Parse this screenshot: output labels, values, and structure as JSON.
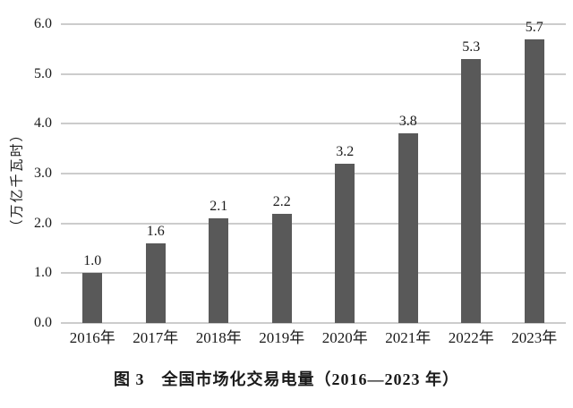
{
  "chart_data": {
    "type": "bar",
    "categories": [
      "2016年",
      "2017年",
      "2018年",
      "2019年",
      "2020年",
      "2021年",
      "2022年",
      "2023年"
    ],
    "values": [
      1.0,
      1.6,
      2.1,
      2.2,
      3.2,
      3.8,
      5.3,
      5.7
    ],
    "value_labels": [
      "1.0",
      "1.6",
      "2.1",
      "2.2",
      "3.2",
      "3.8",
      "5.3",
      "5.7"
    ],
    "title": "图 3　全国市场化交易电量（2016—2023 年）",
    "xlabel": "",
    "ylabel": "（万亿千瓦时）",
    "yticks": [
      "0.0",
      "1.0",
      "2.0",
      "3.0",
      "4.0",
      "5.0",
      "6.0"
    ],
    "ylim": [
      0,
      6
    ],
    "grid": true,
    "legend": "none",
    "bar_color": "#595959",
    "gridline_color": "#cccccc",
    "text_color": "#1a1a1a"
  }
}
